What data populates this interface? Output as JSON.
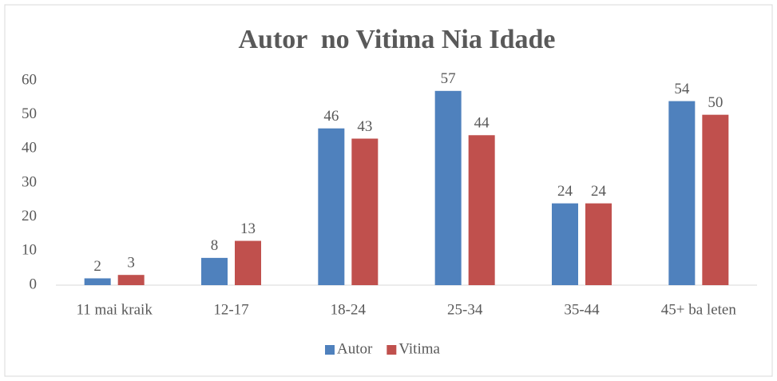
{
  "chart_data": {
    "type": "bar",
    "title": "Autor  no Vitima Nia Idade",
    "categories": [
      "11 mai kraik",
      "12-17",
      "18-24",
      "25-34",
      "35-44",
      "45+ ba leten"
    ],
    "series": [
      {
        "name": "Autor",
        "color": "#4f81bd",
        "values": [
          2,
          8,
          46,
          57,
          24,
          54
        ]
      },
      {
        "name": "Vitima",
        "color": "#c0504d",
        "values": [
          3,
          13,
          43,
          44,
          24,
          50
        ]
      }
    ],
    "ylim": [
      0,
      60
    ],
    "yticks": [
      0,
      10,
      20,
      30,
      40,
      50,
      60
    ],
    "grid": false,
    "legend": "bottom"
  }
}
